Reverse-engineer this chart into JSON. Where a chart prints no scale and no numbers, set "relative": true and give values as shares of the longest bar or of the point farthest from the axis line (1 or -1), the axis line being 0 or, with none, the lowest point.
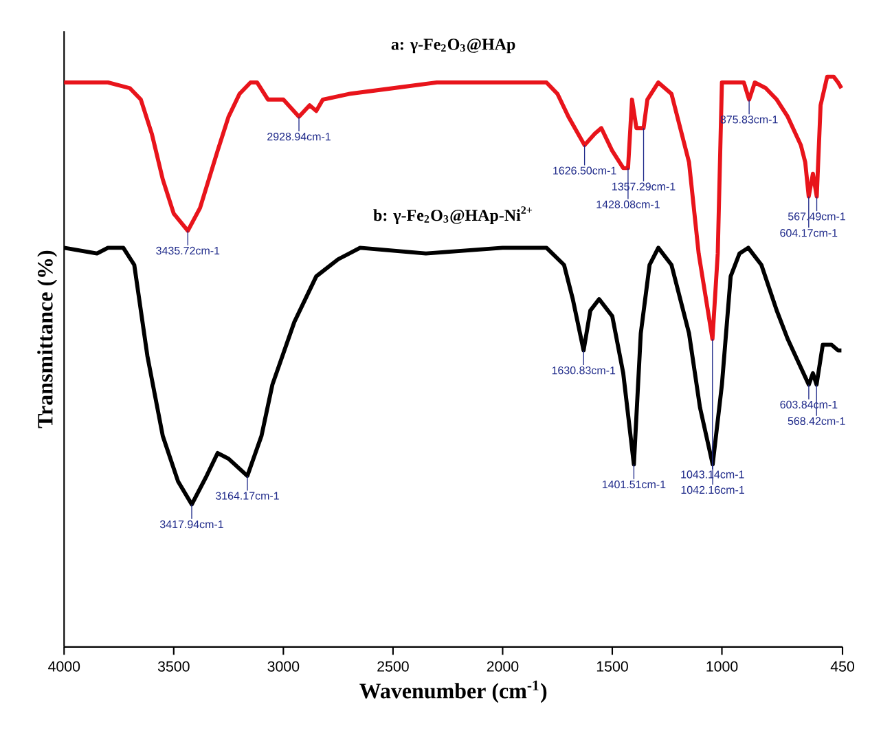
{
  "chart_data": {
    "type": "line",
    "relative": true,
    "xlabel": "Wavenumber (cm$^{-1}$)",
    "ylabel": "Transmittance (%)",
    "xlim": [
      4000,
      450
    ],
    "xticks": [
      4000,
      3500,
      3000,
      2500,
      2000,
      1500,
      1000,
      450
    ],
    "series": [
      {
        "name": "a: γ-Fe$_{2}$O$_{3}$@HAp",
        "color": "#e8141b",
        "x": [
          4000,
          3800,
          3700,
          3650,
          3600,
          3550,
          3500,
          3435.72,
          3380,
          3300,
          3250,
          3200,
          3150,
          3120,
          3070,
          3000,
          2928.94,
          2880,
          2850,
          2820,
          2700,
          2500,
          2300,
          2000,
          1800,
          1750,
          1700,
          1626.5,
          1580,
          1550,
          1500,
          1450,
          1428.08,
          1410,
          1390,
          1357.29,
          1340,
          1290,
          1230,
          1150,
          1106,
          1043.14,
          1019,
          1000,
          960,
          900,
          875.83,
          850,
          800,
          750,
          700,
          640,
          620,
          604.17,
          585,
          567.49,
          550,
          520,
          490,
          470,
          455
        ],
        "values": [
          0.99,
          0.99,
          0.98,
          0.96,
          0.9,
          0.82,
          0.76,
          0.73,
          0.77,
          0.87,
          0.93,
          0.97,
          0.99,
          0.99,
          0.96,
          0.96,
          0.93,
          0.95,
          0.94,
          0.96,
          0.97,
          0.98,
          0.99,
          0.99,
          0.99,
          0.97,
          0.93,
          0.88,
          0.9,
          0.91,
          0.87,
          0.84,
          0.84,
          0.96,
          0.91,
          0.91,
          0.96,
          0.99,
          0.97,
          0.85,
          0.69,
          0.54,
          0.69,
          0.99,
          0.99,
          0.99,
          0.96,
          0.99,
          0.98,
          0.96,
          0.93,
          0.88,
          0.85,
          0.79,
          0.83,
          0.79,
          0.95,
          1.0,
          1.0,
          0.99,
          0.98
        ]
      },
      {
        "name": "b: γ-Fe$_{2}$O$_{3}$@HAp-Ni$^{2+}$",
        "color": "#000000",
        "x": [
          4000,
          3850,
          3800,
          3760,
          3730,
          3680,
          3620,
          3550,
          3480,
          3417.94,
          3350,
          3300,
          3250,
          3164.17,
          3100,
          3050,
          2950,
          2850,
          2750,
          2650,
          2350,
          2000,
          1800,
          1720,
          1680,
          1630.83,
          1600,
          1560,
          1500,
          1450,
          1401.51,
          1370,
          1330,
          1290,
          1230,
          1150,
          1100,
          1042.16,
          1000,
          960,
          920,
          880,
          820,
          750,
          700,
          640,
          603.84,
          585,
          568.42,
          540,
          500,
          470,
          455
        ],
        "values": [
          0.7,
          0.69,
          0.7,
          0.7,
          0.7,
          0.67,
          0.51,
          0.37,
          0.29,
          0.25,
          0.3,
          0.34,
          0.33,
          0.3,
          0.37,
          0.46,
          0.57,
          0.65,
          0.68,
          0.7,
          0.69,
          0.7,
          0.7,
          0.67,
          0.61,
          0.52,
          0.59,
          0.61,
          0.58,
          0.48,
          0.32,
          0.55,
          0.67,
          0.7,
          0.67,
          0.55,
          0.42,
          0.32,
          0.46,
          0.65,
          0.69,
          0.7,
          0.67,
          0.59,
          0.54,
          0.49,
          0.46,
          0.48,
          0.46,
          0.53,
          0.53,
          0.52,
          0.52
        ]
      }
    ],
    "annotations": [
      {
        "text": "3435.72cm-1",
        "x": 3435.72,
        "y": 0.73
      },
      {
        "text": "2928.94cm-1",
        "x": 2928.94,
        "y": 0.93
      },
      {
        "text": "1626.50cm-1",
        "x": 1626.5,
        "y": 0.88
      },
      {
        "text": "1357.29cm-1",
        "x": 1357.29,
        "y": 0.91
      },
      {
        "text": "1428.08cm-1",
        "x": 1428.08,
        "y": 0.84
      },
      {
        "text": "875.83cm-1",
        "x": 875.83,
        "y": 0.96
      },
      {
        "text": "567.49cm-1",
        "x": 567.49,
        "y": 0.79
      },
      {
        "text": "604.17cm-1",
        "x": 604.17,
        "y": 0.79
      },
      {
        "text": "1043.14cm-1",
        "x": 1043.14,
        "y": 0.54
      },
      {
        "text": "3417.94cm-1",
        "x": 3417.94,
        "y": 0.25
      },
      {
        "text": "3164.17cm-1",
        "x": 3164.17,
        "y": 0.3
      },
      {
        "text": "1630.83cm-1",
        "x": 1630.83,
        "y": 0.52
      },
      {
        "text": "1401.51cm-1",
        "x": 1401.51,
        "y": 0.32
      },
      {
        "text": "1042.16cm-1",
        "x": 1042.16,
        "y": 0.32
      },
      {
        "text": "603.84cm-1",
        "x": 603.84,
        "y": 0.46
      },
      {
        "text": "568.42cm-1",
        "x": 568.42,
        "y": 0.46
      }
    ]
  }
}
